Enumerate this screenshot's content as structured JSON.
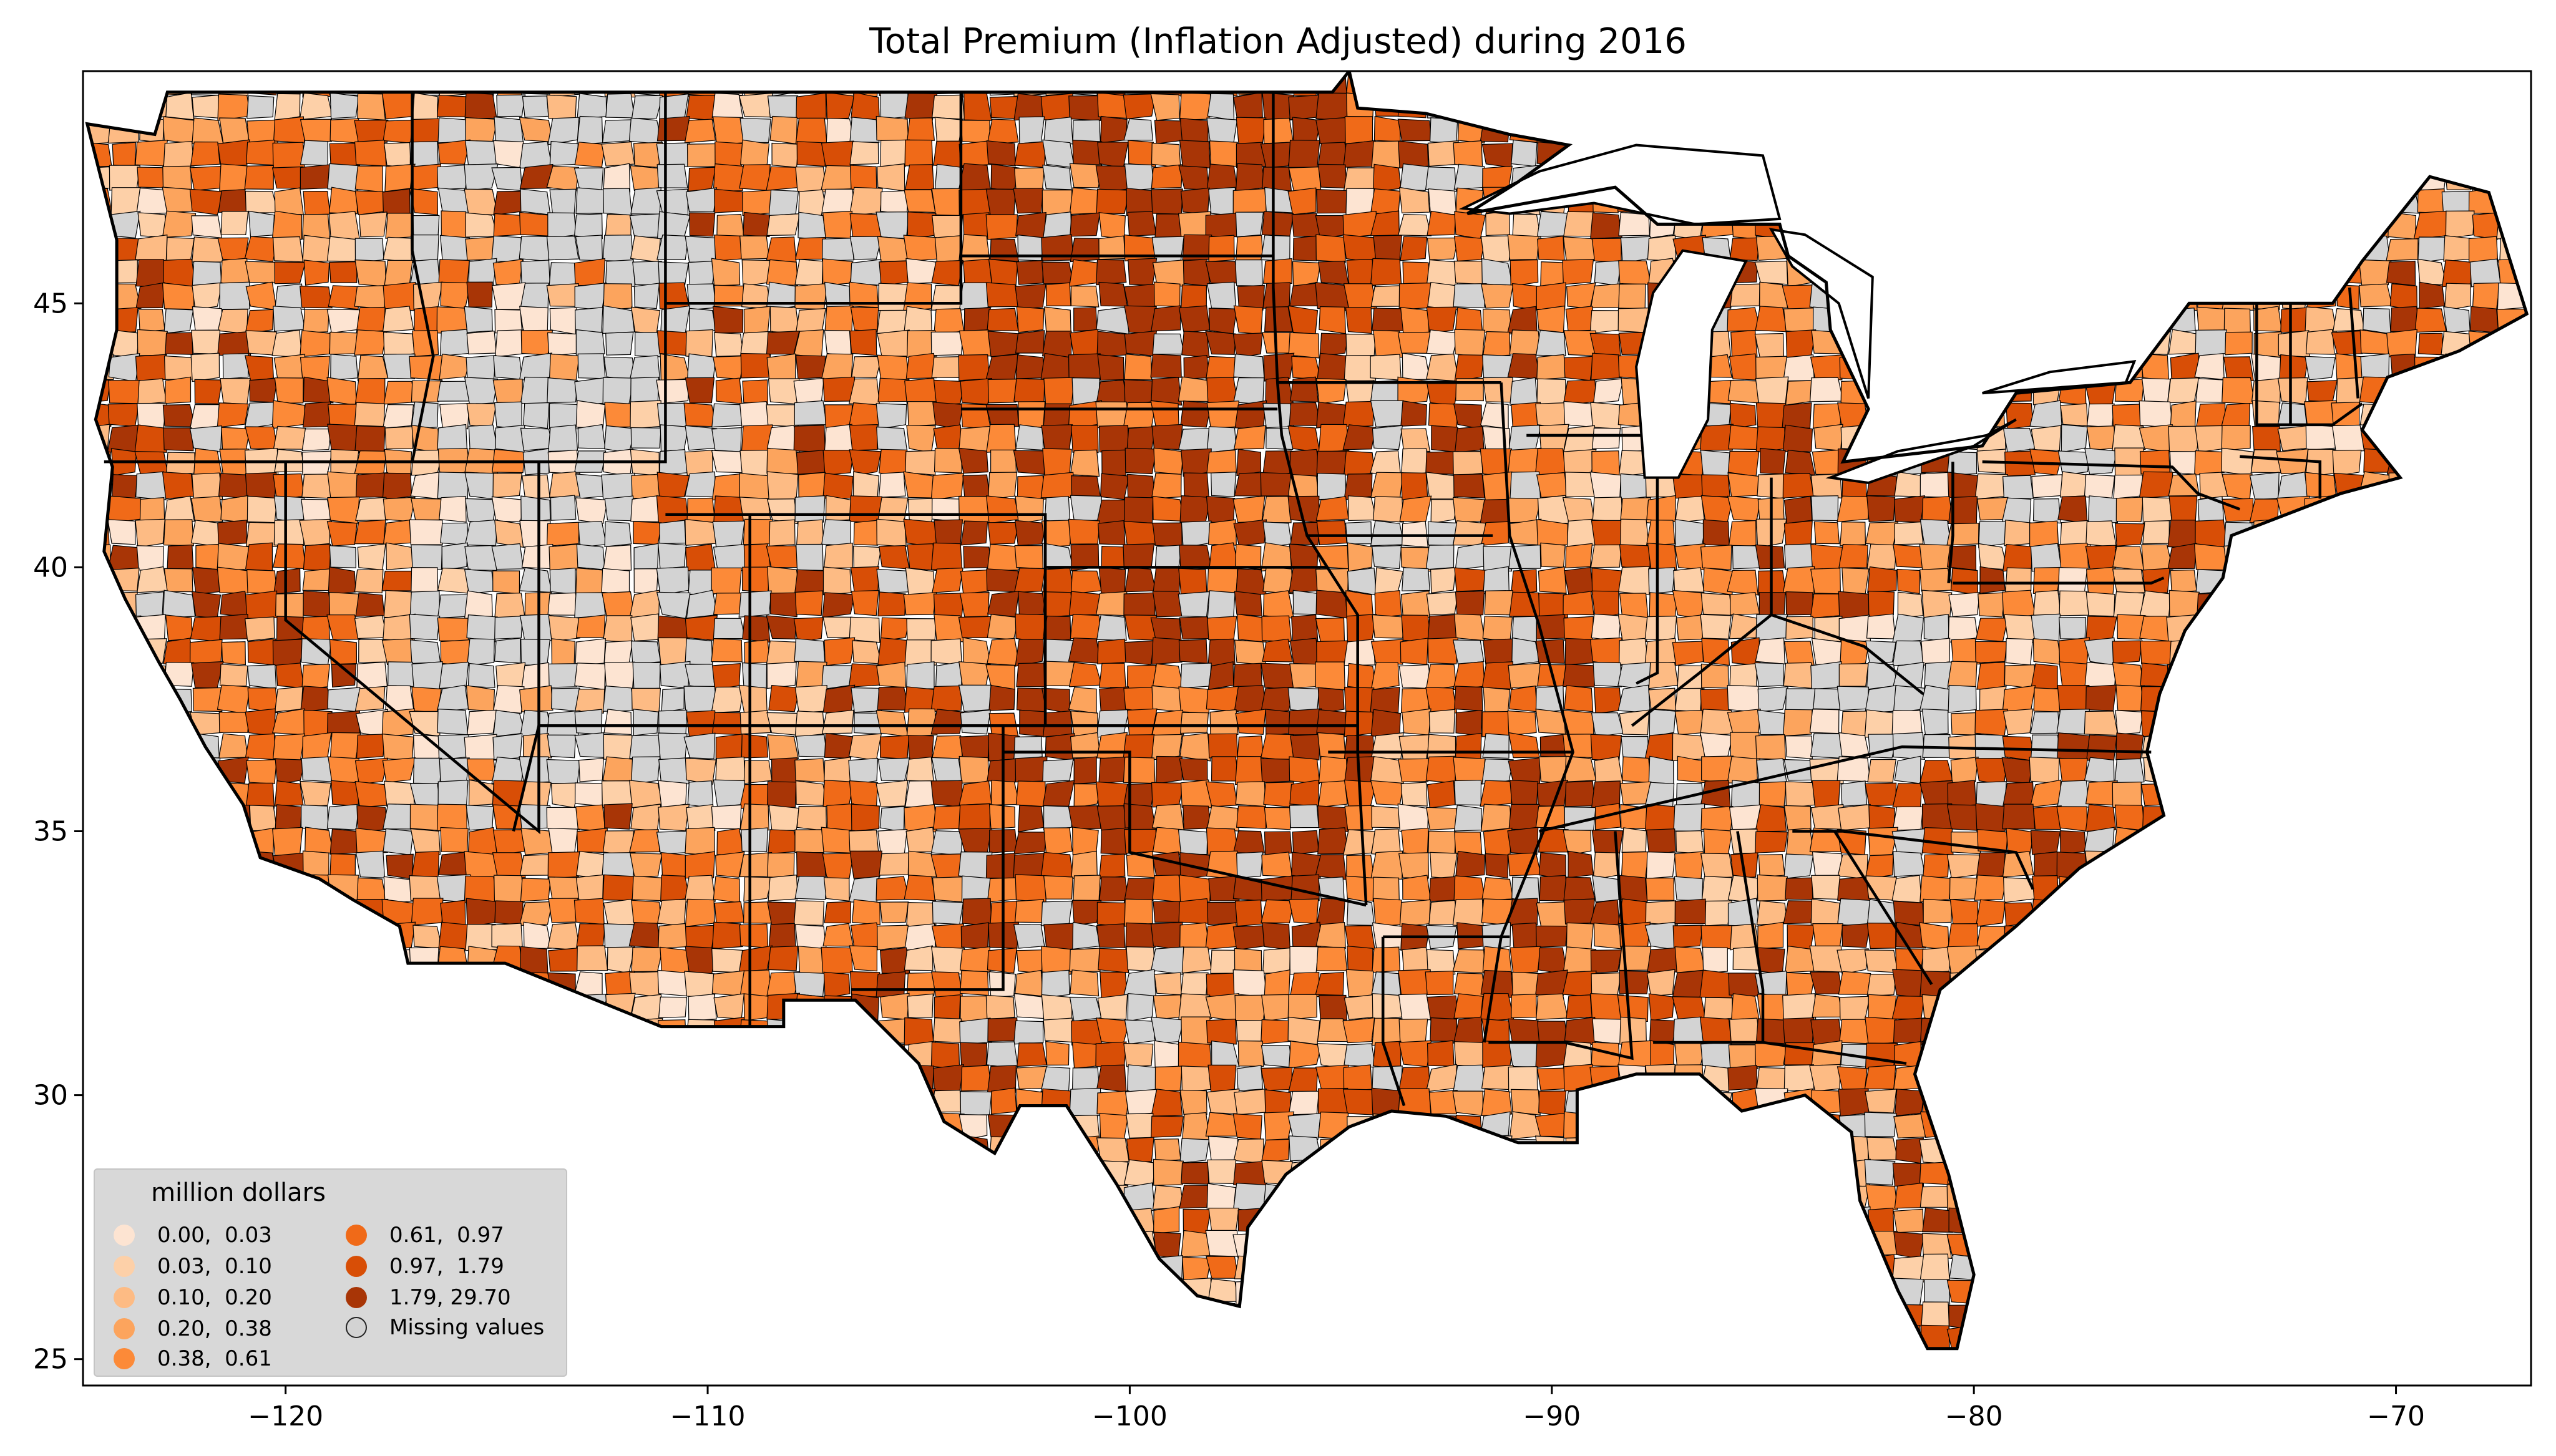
{
  "title": "Total  Premium  (Inflation Adjusted) during 2016",
  "legend": {
    "title": "million dollars",
    "items": [
      {
        "label": "0.00,  0.03",
        "color": "#fde4d2"
      },
      {
        "label": "0.03,  0.10",
        "color": "#fdd0a8"
      },
      {
        "label": "0.10,  0.20",
        "color": "#fdbb84"
      },
      {
        "label": "0.20,  0.38",
        "color": "#fca45d"
      },
      {
        "label": "0.38,  0.61",
        "color": "#fc8a38"
      },
      {
        "label": "0.61,  0.97",
        "color": "#f06a18"
      },
      {
        "label": "0.97,  1.79",
        "color": "#d84e06"
      },
      {
        "label": "1.79, 29.70",
        "color": "#a83506"
      },
      {
        "label": "Missing values",
        "color": "#d3d3d3"
      }
    ]
  },
  "axes": {
    "x_ticks": [
      -120,
      -110,
      -100,
      -90,
      -80,
      -70
    ],
    "x_tick_labels": [
      "−120",
      "−110",
      "−100",
      "−90",
      "−80",
      "−70"
    ],
    "y_ticks": [
      25,
      30,
      35,
      40,
      45
    ],
    "y_tick_labels": [
      "25",
      "30",
      "35",
      "40",
      "45"
    ],
    "xlim": [
      -124.8,
      -66.8
    ],
    "ylim": [
      24.5,
      49.4
    ]
  },
  "map": {
    "region": "Contiguous United States",
    "unit": "county",
    "state_border_color": "#000000",
    "county_border_color": "#000000"
  }
}
